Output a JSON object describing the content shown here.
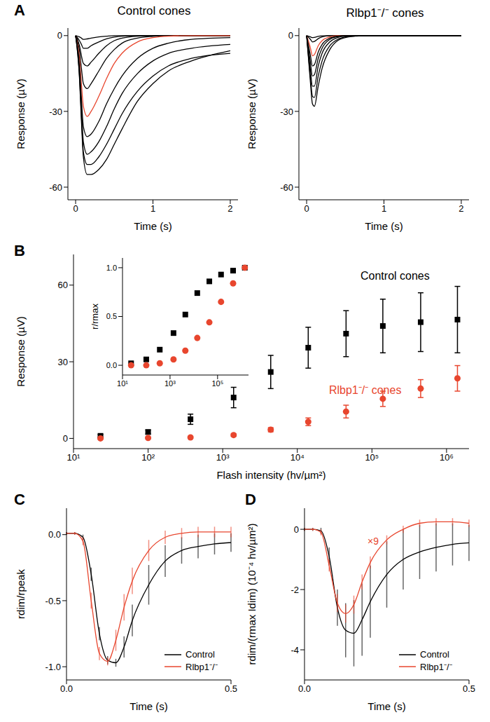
{
  "chart_data": [
    {
      "panel_label": "A",
      "type": "line",
      "title": "Control cones",
      "x_label": "Time (s)",
      "y_label": "Response (µV)",
      "x": [
        0,
        0.05,
        0.075,
        0.1,
        0.15,
        0.2,
        0.3,
        0.4,
        0.5,
        0.6,
        0.8,
        1.0,
        1.2,
        1.5,
        2.0
      ],
      "xlim": [
        -0.1,
        2.1
      ],
      "xticks": [
        0,
        1,
        2
      ],
      "ylim": [
        -65,
        3
      ],
      "yticks": [
        -60,
        -30,
        0
      ],
      "series": [
        {
          "color": "#000000",
          "values": [
            0,
            -0.5,
            -1,
            -1.5,
            -1.3,
            -1,
            -0.5,
            -0.2,
            0,
            0,
            0,
            0,
            0,
            0,
            0
          ]
        },
        {
          "color": "#000000",
          "values": [
            0,
            -2,
            -3.5,
            -5,
            -5,
            -4,
            -2.5,
            -1.3,
            -0.6,
            -0.2,
            0,
            0,
            0,
            0,
            0
          ]
        },
        {
          "color": "#000000",
          "values": [
            0,
            -4,
            -8,
            -11,
            -12,
            -10.5,
            -7,
            -4,
            -2,
            -1,
            -0.2,
            0,
            0,
            0,
            0
          ]
        },
        {
          "color": "#000000",
          "values": [
            0,
            -6,
            -13,
            -19,
            -21,
            -19,
            -14,
            -9,
            -5.5,
            -3,
            -1,
            -0.3,
            0,
            0,
            0
          ]
        },
        {
          "color": "#e8462e",
          "values": [
            0,
            -9,
            -19,
            -28,
            -32,
            -30,
            -24,
            -17,
            -11,
            -7,
            -2.5,
            -0.8,
            -0.2,
            0,
            0
          ]
        },
        {
          "color": "#000000",
          "values": [
            0,
            -12,
            -25,
            -36,
            -40,
            -39,
            -34,
            -27,
            -21,
            -16,
            -9,
            -5,
            -3,
            -1.5,
            -0.8
          ]
        },
        {
          "color": "#000000",
          "values": [
            0,
            -14,
            -29,
            -42,
            -47,
            -46,
            -42,
            -36,
            -29,
            -23,
            -15,
            -10,
            -7,
            -5,
            -3.5
          ]
        },
        {
          "color": "#000000",
          "values": [
            0,
            -16,
            -32,
            -46,
            -51,
            -51,
            -48,
            -43,
            -37,
            -31,
            -22,
            -16,
            -12,
            -9,
            -7
          ]
        },
        {
          "color": "#000000",
          "values": [
            0,
            -17,
            -34,
            -48,
            -55,
            -55,
            -53,
            -49,
            -43,
            -37,
            -26,
            -19,
            -14,
            -10,
            -6
          ]
        }
      ]
    },
    {
      "type": "line",
      "title": "Rlbp1⁻/⁻ cones",
      "x_label": "Time (s)",
      "y_label": "Response (µV)",
      "x": [
        0,
        0.05,
        0.075,
        0.1,
        0.15,
        0.2,
        0.3,
        0.4,
        0.5,
        0.6,
        0.8,
        1.0,
        1.2,
        1.5,
        2.0
      ],
      "xlim": [
        -0.1,
        2.1
      ],
      "xticks": [
        0,
        1,
        2
      ],
      "ylim": [
        -65,
        3
      ],
      "yticks": [
        -60,
        -30,
        0
      ],
      "series": [
        {
          "color": "#000000",
          "values": [
            0,
            -0.5,
            -0.8,
            -0.7,
            -0.3,
            -0.1,
            0,
            0,
            0,
            0,
            0,
            0,
            0,
            0,
            0
          ]
        },
        {
          "color": "#000000",
          "values": [
            0,
            -1.5,
            -2.5,
            -2.3,
            -1.2,
            -0.5,
            0,
            0,
            0,
            0,
            0,
            0,
            0,
            0,
            0
          ]
        },
        {
          "color": "#e8462e",
          "values": [
            0,
            -5,
            -8,
            -7.5,
            -4,
            -2,
            -0.5,
            0,
            0,
            0,
            0,
            0,
            0,
            0,
            0
          ]
        },
        {
          "color": "#000000",
          "values": [
            0,
            -8,
            -12,
            -11.5,
            -6.5,
            -3.5,
            -1,
            -0.2,
            0,
            0,
            0,
            0,
            0,
            0,
            0
          ]
        },
        {
          "color": "#000000",
          "values": [
            0,
            -11,
            -16,
            -15.5,
            -9,
            -5,
            -1.5,
            -0.4,
            0,
            0,
            0,
            0,
            0,
            0,
            0
          ]
        },
        {
          "color": "#000000",
          "values": [
            0,
            -14,
            -20,
            -20,
            -12,
            -7,
            -2.5,
            -0.8,
            -0.2,
            0,
            0,
            0,
            0,
            0,
            0
          ]
        },
        {
          "color": "#000000",
          "values": [
            0,
            -17,
            -24,
            -24.5,
            -16,
            -10,
            -4,
            -1.5,
            -0.5,
            -0.2,
            0,
            0,
            0,
            0,
            0
          ]
        },
        {
          "color": "#000000",
          "values": [
            0,
            -19,
            -27,
            -28,
            -20,
            -13,
            -5.5,
            -2,
            -0.8,
            -0.3,
            0,
            0,
            0,
            0,
            0
          ]
        }
      ]
    },
    {
      "panel_label": "B",
      "type": "scatter",
      "log": "x",
      "x_label": "Flash intensity (hv/µm²)",
      "y_label": "Response (µV)",
      "x": [
        23,
        100,
        370,
        1400,
        4400,
        14000,
        45000,
        140000,
        450000,
        1400000
      ],
      "xlim": [
        10,
        2000000
      ],
      "xticks": [
        {
          "value": 10,
          "label": "10¹"
        },
        {
          "value": 100,
          "label": "10²"
        },
        {
          "value": 1000,
          "label": "10³"
        },
        {
          "value": 10000,
          "label": "10⁴"
        },
        {
          "value": 100000,
          "label": "10⁵"
        },
        {
          "value": 1000000,
          "label": "10⁶"
        }
      ],
      "ylim": [
        -4,
        72
      ],
      "yticks": [
        0,
        30,
        60
      ],
      "series": [
        {
          "name": "Control cones",
          "color": "#000000",
          "marker": "square",
          "values": [
            1,
            2.5,
            7.5,
            16,
            26,
            35.5,
            41,
            44,
            45.5,
            46.5
          ],
          "errors": [
            0.5,
            0.8,
            2,
            4,
            6.5,
            8,
            9,
            10.5,
            11.5,
            13
          ]
        },
        {
          "name": "Rlbp1⁻/⁻ cones",
          "color": "#e8462e",
          "marker": "circle",
          "values": [
            0,
            0.2,
            0.4,
            1.3,
            3.4,
            6.5,
            10.5,
            15.5,
            19.5,
            23.5
          ],
          "errors": [
            0.3,
            0.3,
            0.4,
            0.5,
            0.8,
            1.5,
            2.5,
            3,
            3.5,
            5
          ]
        }
      ]
    },
    {
      "type": "scatter",
      "log": "x",
      "y_label": "r/rmax",
      "x": [
        23,
        100,
        370,
        1400,
        4400,
        14000,
        45000,
        140000,
        450000,
        1400000
      ],
      "xlim": [
        10,
        2000000
      ],
      "xticks": [
        {
          "value": 10,
          "label": "10¹"
        },
        {
          "value": 1000,
          "label": "10³"
        },
        {
          "value": 100000,
          "label": "10⁵"
        }
      ],
      "ylim": [
        -0.1,
        1.1
      ],
      "yticks": [
        {
          "value": 0,
          "label": "0.0"
        },
        {
          "value": 0.5,
          "label": "0.5"
        },
        {
          "value": 1,
          "label": "1.0"
        }
      ],
      "series": [
        {
          "color": "#000000",
          "marker": "square",
          "values": [
            0.02,
            0.06,
            0.16,
            0.33,
            0.52,
            0.74,
            0.86,
            0.93,
            0.97,
            1.0
          ]
        },
        {
          "color": "#e8462e",
          "marker": "circle",
          "values": [
            0,
            0,
            0.02,
            0.06,
            0.15,
            0.28,
            0.44,
            0.65,
            0.84,
            1.0
          ]
        }
      ]
    },
    {
      "panel_label": "C",
      "type": "line",
      "x_label": "Time (s)",
      "y_label": "rdim/rpeak",
      "legend": "lower right",
      "x": [
        0,
        0.025,
        0.05,
        0.075,
        0.1,
        0.125,
        0.15,
        0.175,
        0.2,
        0.25,
        0.3,
        0.35,
        0.4,
        0.45,
        0.5
      ],
      "xlim": [
        0,
        0.5
      ],
      "xticks": [
        {
          "value": 0,
          "label": "0.0"
        },
        {
          "value": 0.5,
          "label": "0.5"
        }
      ],
      "ylim": [
        -1.1,
        0.2
      ],
      "yticks": [
        {
          "value": -1,
          "label": "-1.0"
        },
        {
          "value": -0.5,
          "label": "-0.5"
        },
        {
          "value": 0,
          "label": "0.0"
        }
      ],
      "series": [
        {
          "name": "Control",
          "color": "#000000",
          "values": [
            0.01,
            0.01,
            -0.02,
            -0.3,
            -0.75,
            -0.95,
            -0.97,
            -0.85,
            -0.65,
            -0.38,
            -0.2,
            -0.12,
            -0.09,
            -0.07,
            -0.06
          ],
          "errors": [
            0.01,
            0.01,
            0.02,
            0.05,
            0.05,
            0.03,
            0.03,
            0.08,
            0.12,
            0.15,
            0.12,
            0.1,
            0.09,
            0.08,
            0.07
          ]
        },
        {
          "name": "Rlbp1⁻/⁻",
          "color": "#e8462e",
          "values": [
            0.01,
            0.01,
            -0.05,
            -0.5,
            -0.9,
            -0.96,
            -0.8,
            -0.55,
            -0.35,
            -0.12,
            -0.02,
            0.01,
            0.02,
            0.02,
            0.02
          ],
          "errors": [
            0.01,
            0.01,
            0.03,
            0.06,
            0.05,
            0.03,
            0.08,
            0.1,
            0.1,
            0.08,
            0.05,
            0.04,
            0.04,
            0.04,
            0.04
          ]
        }
      ]
    },
    {
      "panel_label": "D",
      "type": "line",
      "x_label": "Time (s)",
      "y_label": "rdim/(rmax Idim) (10⁻⁴ hv/µm²)",
      "legend": "lower right",
      "annotation": "×9",
      "x": [
        0,
        0.025,
        0.05,
        0.075,
        0.1,
        0.125,
        0.15,
        0.175,
        0.2,
        0.25,
        0.3,
        0.35,
        0.4,
        0.45,
        0.5
      ],
      "xlim": [
        0,
        0.5
      ],
      "xticks": [
        {
          "value": 0,
          "label": "0.0"
        },
        {
          "value": 0.5,
          "label": "0.5"
        }
      ],
      "ylim": [
        -5,
        0.7
      ],
      "yticks": [
        -4,
        -2,
        0
      ],
      "series": [
        {
          "name": "Control",
          "color": "#000000",
          "values": [
            0,
            0,
            -0.05,
            -0.9,
            -2.6,
            -3.35,
            -3.45,
            -3.0,
            -2.4,
            -1.5,
            -1.0,
            -0.75,
            -0.6,
            -0.5,
            -0.45
          ],
          "errors": [
            0.05,
            0.05,
            0.1,
            0.3,
            0.6,
            0.9,
            1.1,
            1.2,
            1.2,
            1.1,
            1.0,
            0.9,
            0.8,
            0.7,
            0.6
          ]
        },
        {
          "name": "Rlbp1⁻/⁻",
          "color": "#e8462e",
          "values": [
            0,
            0,
            -0.1,
            -1.2,
            -2.45,
            -2.8,
            -2.5,
            -1.75,
            -1.1,
            -0.35,
            0,
            0.2,
            0.25,
            0.25,
            0.2
          ],
          "errors": [
            0.05,
            0.05,
            0.1,
            0.2,
            0.3,
            0.3,
            0.3,
            0.25,
            0.2,
            0.15,
            0.12,
            0.12,
            0.12,
            0.12,
            0.12
          ]
        }
      ]
    }
  ]
}
